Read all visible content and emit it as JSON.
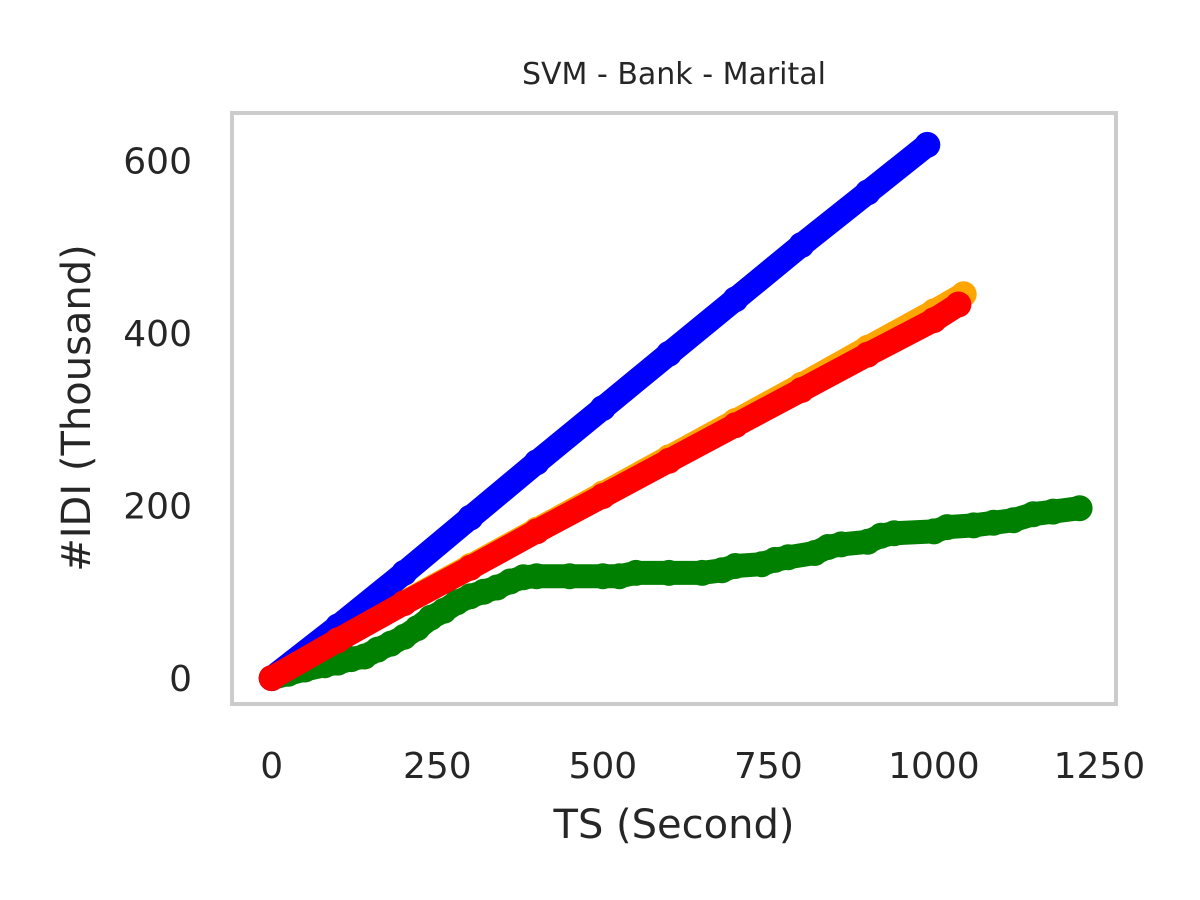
{
  "chart_data": {
    "type": "scatter",
    "title": "SVM - Bank - Marital",
    "xlabel": "TS (Second)",
    "ylabel": "#IDI (Thousand)",
    "xlim": [
      -60,
      1275
    ],
    "ylim": [
      -30,
      655
    ],
    "xticks": [
      0,
      250,
      500,
      750,
      1000,
      1250
    ],
    "yticks": [
      0,
      200,
      400,
      600
    ],
    "grid": false,
    "legend": "none",
    "frame_color": "#cccccc",
    "series": [
      {
        "color": "#ffa500",
        "points": [
          [
            0,
            0
          ],
          [
            100,
            45
          ],
          [
            200,
            88
          ],
          [
            300,
            130
          ],
          [
            400,
            172
          ],
          [
            500,
            214
          ],
          [
            600,
            256
          ],
          [
            700,
            298
          ],
          [
            800,
            340
          ],
          [
            900,
            383
          ],
          [
            1000,
            425
          ],
          [
            1045,
            445
          ]
        ]
      },
      {
        "color": "#008000",
        "points": [
          [
            0,
            0
          ],
          [
            25,
            5
          ],
          [
            50,
            10
          ],
          [
            80,
            15
          ],
          [
            100,
            18
          ],
          [
            120,
            22
          ],
          [
            140,
            25
          ],
          [
            160,
            33
          ],
          [
            180,
            40
          ],
          [
            200,
            48
          ],
          [
            220,
            58
          ],
          [
            240,
            70
          ],
          [
            260,
            78
          ],
          [
            280,
            88
          ],
          [
            300,
            95
          ],
          [
            320,
            100
          ],
          [
            340,
            105
          ],
          [
            360,
            112
          ],
          [
            380,
            117
          ],
          [
            400,
            118
          ],
          [
            450,
            118
          ],
          [
            500,
            118
          ],
          [
            525,
            118
          ],
          [
            550,
            122
          ],
          [
            600,
            122
          ],
          [
            650,
            122
          ],
          [
            680,
            125
          ],
          [
            700,
            130
          ],
          [
            740,
            132
          ],
          [
            760,
            137
          ],
          [
            780,
            140
          ],
          [
            820,
            145
          ],
          [
            840,
            152
          ],
          [
            860,
            155
          ],
          [
            900,
            158
          ],
          [
            920,
            165
          ],
          [
            940,
            168
          ],
          [
            1000,
            170
          ],
          [
            1020,
            175
          ],
          [
            1060,
            177
          ],
          [
            1090,
            180
          ],
          [
            1120,
            183
          ],
          [
            1150,
            190
          ],
          [
            1180,
            193
          ],
          [
            1220,
            197
          ]
        ]
      },
      {
        "color": "#0000ff",
        "points": [
          [
            0,
            0
          ],
          [
            100,
            60
          ],
          [
            200,
            122
          ],
          [
            300,
            186
          ],
          [
            400,
            250
          ],
          [
            500,
            313
          ],
          [
            600,
            376
          ],
          [
            700,
            439
          ],
          [
            800,
            502
          ],
          [
            900,
            563
          ],
          [
            990,
            618
          ]
        ]
      },
      {
        "color": "#ff0000",
        "points": [
          [
            0,
            0
          ],
          [
            100,
            44
          ],
          [
            200,
            87
          ],
          [
            300,
            128
          ],
          [
            400,
            170
          ],
          [
            500,
            211
          ],
          [
            600,
            252
          ],
          [
            700,
            293
          ],
          [
            800,
            334
          ],
          [
            900,
            375
          ],
          [
            1000,
            415
          ],
          [
            1037,
            433
          ]
        ]
      }
    ]
  }
}
